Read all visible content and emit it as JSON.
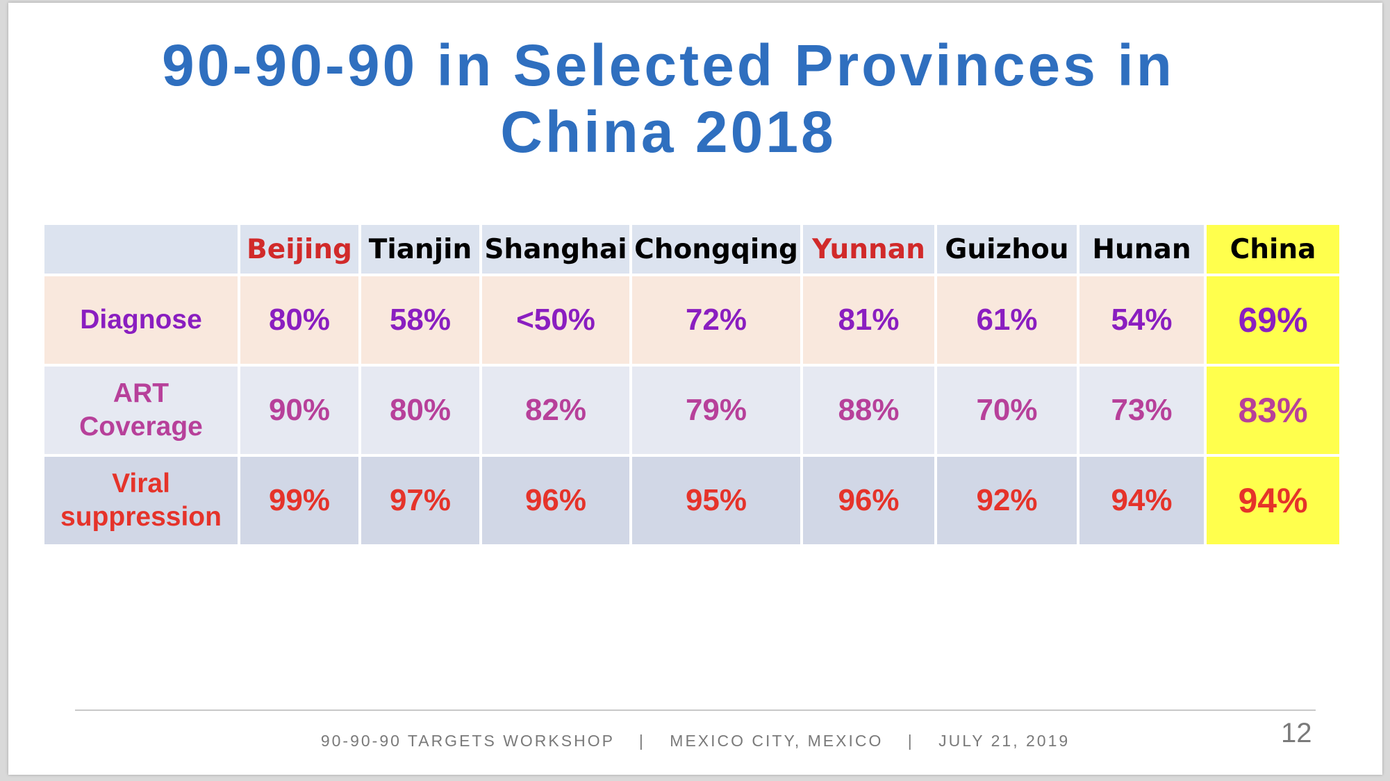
{
  "slide": {
    "title_line1": "90-90-90 in Selected Provinces in",
    "title_line2": "China 2018",
    "page_number": "12"
  },
  "table": {
    "corner": "",
    "columns": [
      "Beijing",
      "Tianjin",
      "Shanghai",
      "Chongqing",
      "Yunnan",
      "Guizhou",
      "Hunan",
      "China"
    ],
    "rows": [
      {
        "label": "Diagnose",
        "values": [
          "80%",
          "58%",
          "<50%",
          "72%",
          "81%",
          "61%",
          "54%",
          "69%"
        ]
      },
      {
        "label_line1": "ART",
        "label_line2": "Coverage",
        "values": [
          "90%",
          "80%",
          "82%",
          "79%",
          "88%",
          "70%",
          "73%",
          "83%"
        ]
      },
      {
        "label_line1": "Viral",
        "label_line2": "suppression",
        "values": [
          "99%",
          "97%",
          "96%",
          "95%",
          "96%",
          "92%",
          "94%",
          "94%"
        ]
      }
    ]
  },
  "footer": {
    "part1": "90-90-90 TARGETS WORKSHOP",
    "sep1": "|",
    "part2": "MEXICO CITY, MEXICO",
    "sep2": "|",
    "part3": "JULY 21, 2019"
  },
  "colors": {
    "title": "#2f6fbf",
    "highlight_red": "#d12a2a",
    "china_highlight": "#ffff4d",
    "diagnose_text": "#8a1ec0",
    "art_text": "#b7409a",
    "viral_text": "#e5332a"
  }
}
